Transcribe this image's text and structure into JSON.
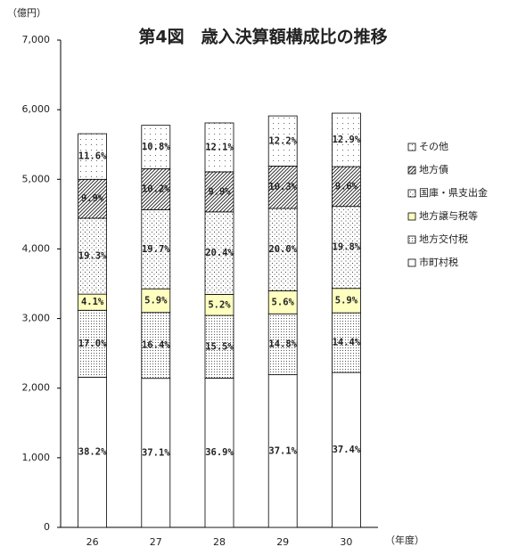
{
  "chart_data": {
    "type": "stacked-bar",
    "title": "第4図　歳入決算額構成比の推移",
    "y_label": "（億円）",
    "x_label": "（年度）",
    "categories": [
      "26",
      "27",
      "28",
      "29",
      "30"
    ],
    "series": [
      {
        "name": "市町村税",
        "color": "#ffffff",
        "pattern": "none",
        "values": [
          2158,
          2141,
          2144,
          2193,
          2225
        ],
        "value_labels": [
          "38.2%",
          "37.1%",
          "36.9%",
          "37.1%",
          "37.4%"
        ]
      },
      {
        "name": "地方交付税",
        "color": "#ffffff",
        "pattern": "dense",
        "values": [
          961,
          946,
          901,
          875,
          857
        ],
        "value_labels": [
          "17.0%",
          "16.4%",
          "15.5%",
          "14.8%",
          "14.4%"
        ]
      },
      {
        "name": "地方譲与税等",
        "color": "#ffffc0",
        "pattern": "none",
        "values": [
          232,
          340,
          302,
          331,
          351
        ],
        "value_labels": [
          "4.1%",
          "5.9%",
          "5.2%",
          "5.6%",
          "5.9%"
        ]
      },
      {
        "name": "国庫・県支出金",
        "color": "#ffffff",
        "pattern": "dots",
        "values": [
          1090,
          1137,
          1185,
          1182,
          1178
        ],
        "value_labels": [
          "19.3%",
          "19.7%",
          "20.4%",
          "20.0%",
          "19.8%"
        ]
      },
      {
        "name": "地方債",
        "color": "#ffffff",
        "pattern": "hatch",
        "values": [
          559,
          589,
          575,
          609,
          571
        ],
        "value_labels": [
          "9.9%",
          "10.2%",
          "9.9%",
          "10.3%",
          "9.6%"
        ]
      },
      {
        "name": "その他",
        "color": "#ffffff",
        "pattern": "sparse",
        "values": [
          655,
          623,
          703,
          721,
          768
        ],
        "value_labels": [
          "11.6%",
          "10.8%",
          "12.1%",
          "12.2%",
          "12.9%"
        ]
      }
    ],
    "ylim": [
      0,
      7000
    ],
    "yticks": [
      0,
      {
        "value": 1000,
        "label": "1,000"
      },
      {
        "value": 2000,
        "label": "2,000"
      },
      {
        "value": 3000,
        "label": "3,000"
      },
      {
        "value": 4000,
        "label": "4,000"
      },
      {
        "value": 5000,
        "label": "5,000"
      },
      {
        "value": 6000,
        "label": "6,000"
      },
      {
        "value": 7000,
        "label": "7,000"
      }
    ],
    "grid": false,
    "legend": "right"
  }
}
